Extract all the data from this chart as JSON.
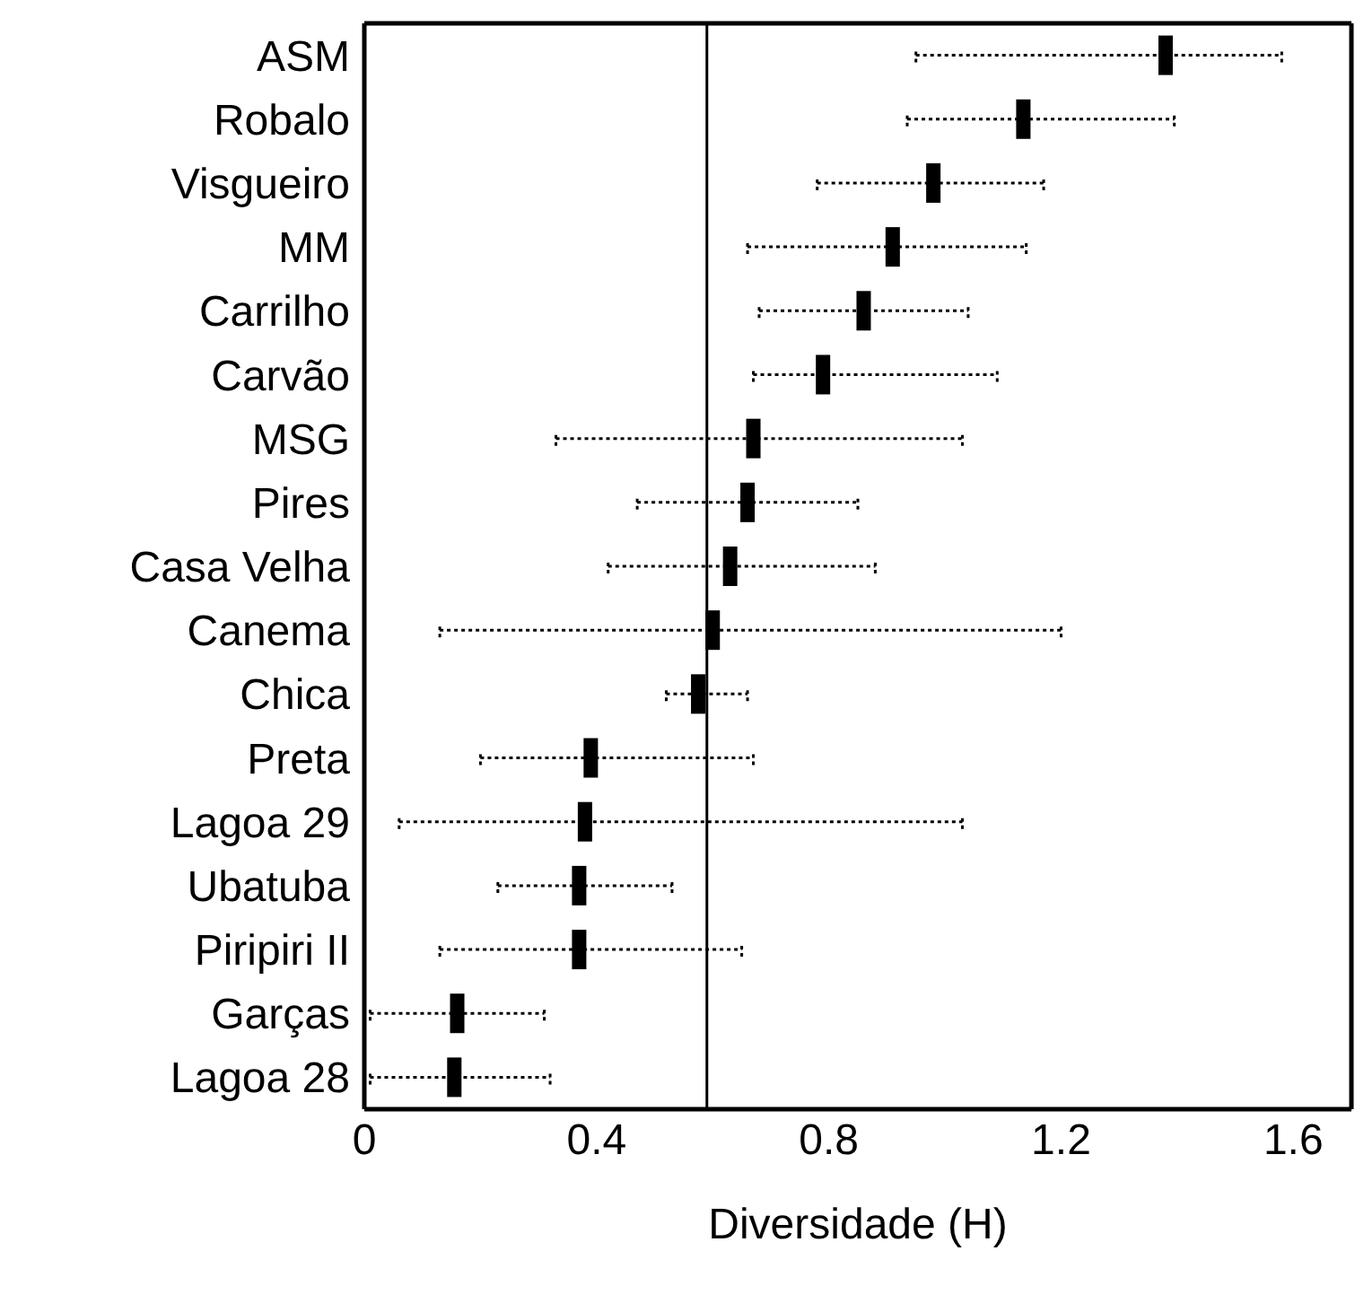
{
  "chart_data": {
    "type": "scatter",
    "orientation": "horizontal",
    "xlabel": "Diversidade (H)",
    "categories": [
      "ASM",
      "Robalo",
      "Visgueiro",
      "MM",
      "Carrilho",
      "Carvão",
      "MSG",
      "Pires",
      "Casa Velha",
      "Canema",
      "Chica",
      "Preta",
      "Lagoa 29",
      "Ubatuba",
      "Piripiri II",
      "Garças",
      "Lagoa 28"
    ],
    "values": [
      1.38,
      1.135,
      0.98,
      0.91,
      0.86,
      0.79,
      0.67,
      0.66,
      0.63,
      0.6,
      0.575,
      0.39,
      0.38,
      0.37,
      0.37,
      0.16,
      0.155
    ],
    "errors": [
      [
        0.95,
        1.58
      ],
      [
        0.935,
        1.395
      ],
      [
        0.78,
        1.17
      ],
      [
        0.66,
        1.14
      ],
      [
        0.68,
        1.04
      ],
      [
        0.67,
        1.09
      ],
      [
        0.33,
        1.03
      ],
      [
        0.47,
        0.85
      ],
      [
        0.42,
        0.88
      ],
      [
        0.13,
        1.2
      ],
      [
        0.52,
        0.66
      ],
      [
        0.2,
        0.67
      ],
      [
        0.06,
        1.03
      ],
      [
        0.23,
        0.53
      ],
      [
        0.13,
        0.65
      ],
      [
        0.01,
        0.31
      ],
      [
        0.01,
        0.32
      ]
    ],
    "color": "#000000",
    "xlim": [
      0,
      1.7
    ],
    "xticks": [
      0,
      0.4,
      0.8,
      1.2,
      1.6
    ],
    "ref_lines": [
      {
        "axis": "x",
        "value": 0.59,
        "color": "#000000"
      }
    ],
    "legend": false
  }
}
